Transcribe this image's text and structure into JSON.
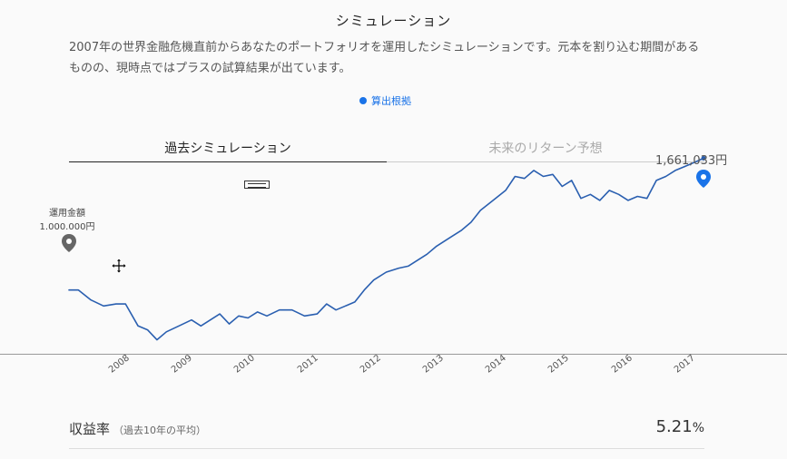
{
  "page": {
    "title": "シミュレーション",
    "description": "2007年の世界金融危機直前からあなたのポートフォリオを運用したシミュレーションです。元本を割り込む期間があるものの、現時点ではプラスの試算結果が出ています。",
    "basis_link": "算出根拠"
  },
  "tabs": [
    {
      "label": "過去シミュレーション",
      "active": true
    },
    {
      "label": "未来のリターン予想",
      "active": false
    }
  ],
  "markers": {
    "start_label_line1": "運用金額",
    "start_label_line2": "1.000.000円",
    "end_label": "1,661,033円"
  },
  "stats": {
    "label": "収益率",
    "sublabel": "（過去10年の平均）",
    "value": "5.21",
    "unit": "%"
  },
  "colors": {
    "line": "#2a5fb0",
    "end_pin": "#1a73e8",
    "start_pin": "#666666"
  },
  "chart_data": {
    "type": "line",
    "title": "",
    "xlabel": "",
    "ylabel": "",
    "x_ticks": [
      "2008",
      "2009",
      "2010",
      "2011",
      "2012",
      "2013",
      "2014",
      "2015",
      "2016",
      "2017"
    ],
    "x": [
      2007.75,
      2007.9,
      2008.1,
      2008.3,
      2008.5,
      2008.65,
      2008.85,
      2009.0,
      2009.15,
      2009.3,
      2009.5,
      2009.7,
      2009.85,
      2010.0,
      2010.15,
      2010.3,
      2010.45,
      2010.6,
      2010.75,
      2010.9,
      2011.1,
      2011.3,
      2011.5,
      2011.7,
      2011.85,
      2012.0,
      2012.15,
      2012.3,
      2012.45,
      2012.6,
      2012.8,
      2013.0,
      2013.15,
      2013.3,
      2013.45,
      2013.6,
      2013.8,
      2014.0,
      2014.15,
      2014.3,
      2014.5,
      2014.7,
      2014.85,
      2015.0,
      2015.15,
      2015.3,
      2015.45,
      2015.6,
      2015.75,
      2015.9,
      2016.05,
      2016.2,
      2016.35,
      2016.5,
      2016.65,
      2016.8,
      2016.95,
      2017.1,
      2017.25,
      2017.4,
      2017.55,
      2017.7,
      2017.85
    ],
    "y": [
      1000000,
      1000000,
      950000,
      920000,
      930000,
      930000,
      820000,
      800000,
      750000,
      790000,
      820000,
      850000,
      820000,
      850000,
      880000,
      830000,
      870000,
      860000,
      890000,
      870000,
      900000,
      900000,
      870000,
      880000,
      930000,
      900000,
      920000,
      940000,
      1000000,
      1050000,
      1090000,
      1110000,
      1120000,
      1150000,
      1180000,
      1220000,
      1260000,
      1300000,
      1340000,
      1400000,
      1450000,
      1500000,
      1570000,
      1560000,
      1600000,
      1570000,
      1580000,
      1520000,
      1550000,
      1460000,
      1480000,
      1450000,
      1500000,
      1480000,
      1450000,
      1470000,
      1460000,
      1550000,
      1570000,
      1600000,
      1620000,
      1640000,
      1661033
    ],
    "ylim": [
      680000,
      1750000
    ],
    "grid": false,
    "legend": "none"
  }
}
